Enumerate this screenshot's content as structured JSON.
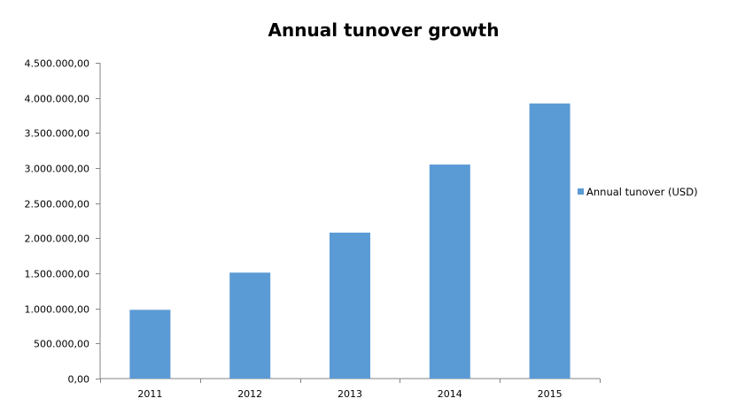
{
  "chart_data": {
    "type": "bar",
    "title": "Annual tunover growth",
    "categories": [
      "2011",
      "2012",
      "2013",
      "2014",
      "2015"
    ],
    "series": [
      {
        "name": "Annual tunover (USD)",
        "color": "#5b9bd5",
        "values": [
          980000,
          1510000,
          2080000,
          3050000,
          3920000
        ]
      }
    ],
    "ylim": [
      0,
      4500000
    ],
    "yticks": [
      0,
      500000,
      1000000,
      1500000,
      2000000,
      2500000,
      3000000,
      3500000,
      4000000,
      4500000
    ],
    "ytick_labels": [
      "0,00",
      "500.000,00",
      "1.000.000,00",
      "1.500.000,00",
      "2.000.000,00",
      "2.500.000,00",
      "3.000.000,00",
      "3.500.000,00",
      "4.000.000,00",
      "4.500.000,00"
    ],
    "xlabel": "",
    "ylabel": "",
    "grid": false,
    "legend": "right"
  }
}
